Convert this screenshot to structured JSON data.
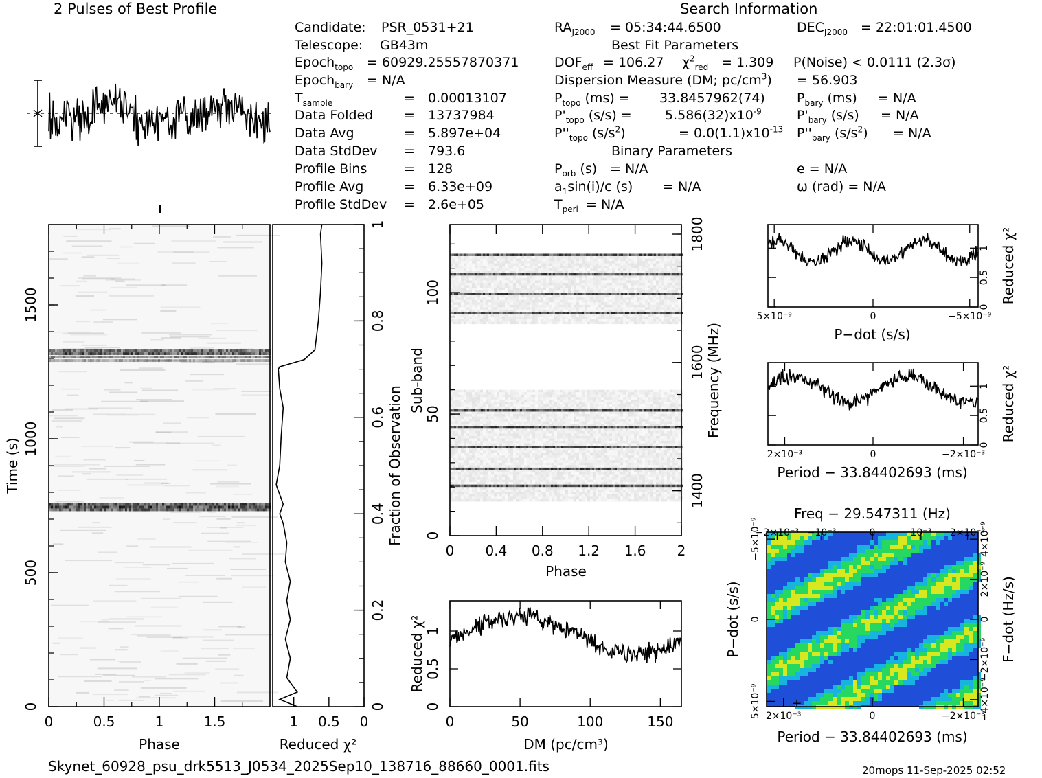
{
  "figure_title": "2 Pulses of Best Profile",
  "search_title": "Search Information",
  "best_fit_title": "Best Fit Parameters",
  "binary_title": "Binary Parameters",
  "info_left": [
    {
      "k": "Candidate:",
      "v": "PSR_0531+21"
    },
    {
      "k": "Telescope:",
      "v": "GB43m"
    },
    {
      "k": "Epoch_topo",
      "v": "= 60929.25557870371"
    },
    {
      "k": "Epoch_bary",
      "v": "= N/A"
    },
    {
      "k": "T_sample",
      "v": "0.00013107"
    },
    {
      "k": "Data Folded",
      "v": "13737984"
    },
    {
      "k": "Data Avg",
      "v": "5.897e+04"
    },
    {
      "k": "Data StdDev",
      "v": "793.6"
    },
    {
      "k": "Profile Bins",
      "v": "128"
    },
    {
      "k": "Profile Avg",
      "v": "6.33e+09"
    },
    {
      "k": "Profile StdDev",
      "v": "2.6e+05"
    }
  ],
  "info_mid": {
    "ra": "= 05:34:44.6500",
    "dof": "= 106.27",
    "chi2": "= 1.309",
    "dm_line": "= 56.903",
    "ptopo": "33.8457962(74)",
    "pdtopo": "5.586(32)x10",
    "pdtopo_exp": "-9",
    "pddtopo": "= 0.0(1.1)x10",
    "pddtopo_exp": "-13",
    "porb": "= N/A",
    "asini": "= N/A",
    "tperi": "= N/A"
  },
  "info_right": {
    "dec": "= 22:01:01.4500",
    "pnoise": "P(Noise) < 0.0111   (2.3σ)",
    "pbary": "= N/A",
    "pdbary": "= N/A",
    "pddbary": "= N/A",
    "e": "e = N/A",
    "omega": "ω (rad) = N/A"
  },
  "footer": {
    "filename": "Skynet_60928_psu_drk5513_J0534_2025Sep10_138716_88660_0001.fits",
    "stamp": "20mops 11-Sep-2025 02:52"
  },
  "chart_data": [
    {
      "type": "line",
      "name": "profile",
      "title": "2 Pulses of Best Profile",
      "xlim": [
        0,
        2
      ]
    },
    {
      "type": "heatmap",
      "name": "time-phase",
      "xlabel": "Phase",
      "ylabel": "Time (s)",
      "xticks": [
        "0",
        "0.5",
        "1",
        "1.5"
      ],
      "yticks": [
        "0",
        "500",
        "1000",
        "1500"
      ],
      "xlim": [
        0,
        2
      ],
      "ylim": [
        0,
        1800
      ],
      "bright_rows_time": [
        745,
        1305
      ]
    },
    {
      "type": "line",
      "name": "chi2-vs-fraction",
      "xlabel": "Reduced χ²",
      "ylabel": "Fraction of Observation",
      "xticks": [
        "1",
        "0.5",
        "0"
      ],
      "yticks": [
        "0",
        "0.2",
        "0.4",
        "0.6",
        "0.8",
        "1"
      ],
      "xlim": [
        1.3,
        0
      ],
      "ylim": [
        0,
        1
      ],
      "points": [
        [
          0.95,
          0
        ],
        [
          1.2,
          0.015
        ],
        [
          0.95,
          0.03
        ],
        [
          1.1,
          0.06
        ],
        [
          1.05,
          0.1
        ],
        [
          1.12,
          0.14
        ],
        [
          1.05,
          0.18
        ],
        [
          1.1,
          0.22
        ],
        [
          1.05,
          0.26
        ],
        [
          1.12,
          0.3
        ],
        [
          1.1,
          0.34
        ],
        [
          1.15,
          0.38
        ],
        [
          1.2,
          0.4
        ],
        [
          1.15,
          0.42
        ],
        [
          1.25,
          0.46
        ],
        [
          1.2,
          0.5
        ],
        [
          1.18,
          0.56
        ],
        [
          1.15,
          0.62
        ],
        [
          1.2,
          0.66
        ],
        [
          1.22,
          0.7
        ],
        [
          1.2,
          0.705
        ],
        [
          0.85,
          0.72
        ],
        [
          0.7,
          0.74
        ],
        [
          0.65,
          0.8
        ],
        [
          0.62,
          0.86
        ],
        [
          0.6,
          0.92
        ],
        [
          0.62,
          0.98
        ],
        [
          0.6,
          1.0
        ]
      ]
    },
    {
      "type": "heatmap",
      "name": "subband-phase",
      "xlabel": "Phase",
      "ylabel": "Sub-band",
      "y2label": "Frequency (MHz)",
      "xticks": [
        "0",
        "0.4",
        "0.8",
        "1.2",
        "1.6",
        "2"
      ],
      "yticks": [
        "0",
        "50",
        "100"
      ],
      "y2ticks": [
        "1400",
        "1600",
        "1800"
      ],
      "xlim": [
        0,
        2
      ],
      "ylim": [
        0,
        128
      ],
      "bands": [
        [
          14,
          60
        ],
        [
          87,
          116
        ]
      ],
      "dark_rows": [
        20,
        27,
        36,
        44,
        51,
        91,
        99,
        107,
        115
      ]
    },
    {
      "type": "line",
      "name": "chi2-vs-dm",
      "xlabel": "DM (pc/cm³)",
      "ylabel": "Reduced χ²",
      "xticks": [
        "0",
        "50",
        "100",
        "150"
      ],
      "yticks": [
        "0",
        "0.5",
        "1"
      ],
      "xlim": [
        0,
        165
      ],
      "ylim": [
        0,
        1.4
      ]
    },
    {
      "type": "line",
      "name": "chi2-vs-pdot",
      "xlabel": "P−dot (s/s)",
      "ylabel": "Reduced χ²",
      "xticks": [
        "5×10⁻⁹",
        "0",
        "−5×10⁻⁹"
      ],
      "yticks": [
        "0",
        "0.5",
        "1"
      ],
      "ylim": [
        0,
        1.4
      ]
    },
    {
      "type": "line",
      "name": "chi2-vs-period",
      "xlabel": "Period − 33.84402693 (ms)",
      "ylabel": "Reduced χ²",
      "xticks": [
        "2×10⁻³",
        "0",
        "−2×10⁻³"
      ],
      "yticks": [
        "0",
        "0.5",
        "1"
      ],
      "ylim": [
        0,
        1.4
      ]
    },
    {
      "type": "heatmap",
      "name": "period-pdot",
      "title": "Freq − 29.547311 (Hz)",
      "xlabel": "Period − 33.84402693 (ms)",
      "ylabel": "P−dot (s/s)",
      "y2label": "F−dot (Hz/s)",
      "xticks": [
        "2×10⁻³",
        "0",
        "−2×10⁻³"
      ],
      "x2ticks": [
        "−2×10⁻³",
        "−10⁻³",
        "0",
        "10⁻³",
        "2×10⁻³"
      ],
      "yticks": [
        "5×10⁻⁹",
        "0",
        "−5×10⁻⁹"
      ],
      "y2ticks": [
        "−4×10⁻⁹",
        "−2×10⁻⁹",
        "0",
        "2×10⁻⁹",
        "4×10⁻⁹"
      ]
    }
  ],
  "colors": {
    "ink": "#000000",
    "heat_blue": "#1f4fd8",
    "heat_cyan": "#18b4e0",
    "heat_green": "#27d860",
    "heat_yellow": "#d8e820"
  }
}
